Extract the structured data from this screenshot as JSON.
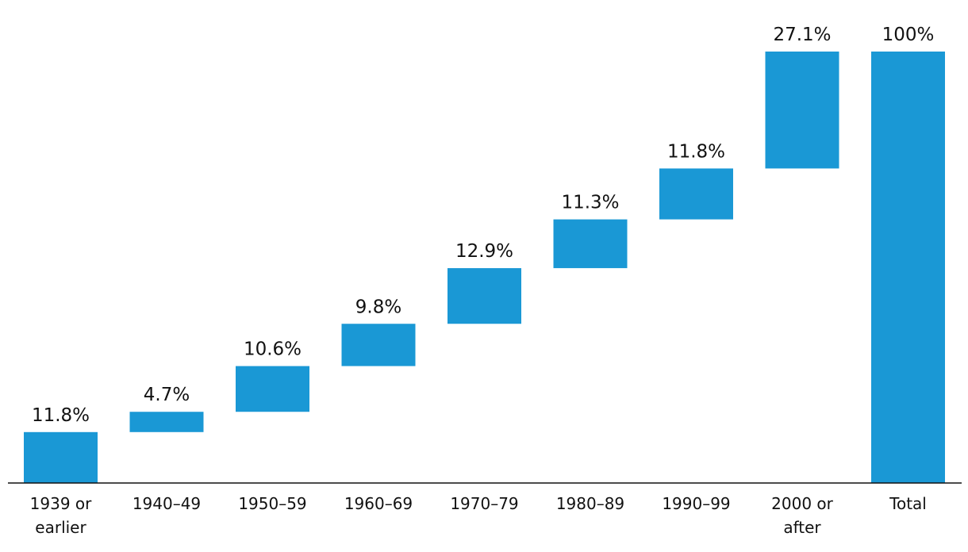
{
  "chart_data": {
    "type": "bar",
    "subtype": "waterfall",
    "title": "",
    "xlabel": "",
    "ylabel": "",
    "ylim": [
      0,
      100
    ],
    "grid": false,
    "legend": "none",
    "bar_color": "#1a98d5",
    "categories": [
      [
        "1939 or",
        "earlier"
      ],
      [
        "1940–49"
      ],
      [
        "1950–59"
      ],
      [
        "1960–69"
      ],
      [
        "1970–79"
      ],
      [
        "1980–89"
      ],
      [
        "1990–99"
      ],
      [
        "2000 or",
        "after"
      ],
      [
        "Total"
      ]
    ],
    "values": [
      11.8,
      4.7,
      10.6,
      9.8,
      12.9,
      11.3,
      11.8,
      27.1,
      100
    ],
    "data_labels": [
      "11.8%",
      "4.7%",
      "10.6%",
      "9.8%",
      "12.9%",
      "11.3%",
      "11.8%",
      "27.1%",
      "100%"
    ],
    "total_index": 8
  }
}
